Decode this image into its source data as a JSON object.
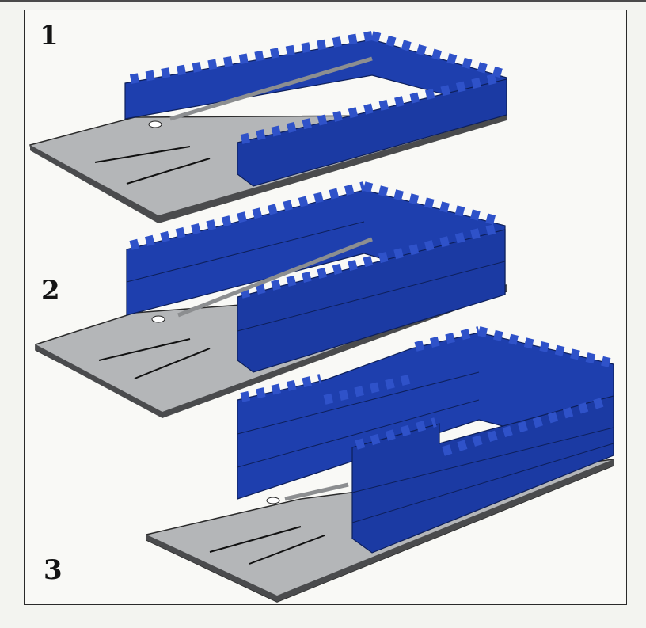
{
  "steps": [
    {
      "number": "1"
    },
    {
      "number": "2"
    },
    {
      "number": "3"
    }
  ],
  "colors": {
    "brick": "#1e3fae",
    "brick_dark": "#15308a",
    "brick_top": "#2f52c9",
    "plate": "#b4b6b8",
    "plate_edge": "#4a4b4d",
    "line": "#111111"
  }
}
